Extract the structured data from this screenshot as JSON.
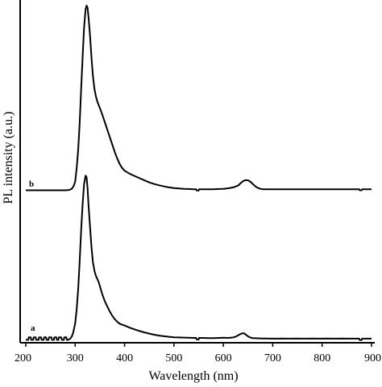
{
  "chart_data": {
    "type": "line",
    "title": "",
    "xlabel": "Wavelength (nm)",
    "ylabel": "PL intensity (a.u.)",
    "xlim": [
      200,
      900
    ],
    "xticks": [
      200,
      300,
      400,
      500,
      600,
      700,
      800,
      900
    ],
    "ylim": [
      0,
      100
    ],
    "grid": false,
    "legend": "none",
    "line_color": "#000000",
    "series": [
      {
        "name": "a",
        "x": [
          200,
          205,
          206,
          210,
          211,
          215,
          216,
          220,
          221,
          226,
          227,
          231,
          232,
          236,
          237,
          241,
          242,
          246,
          247,
          252,
          253,
          257,
          258,
          262,
          263,
          266,
          267,
          272,
          273,
          277,
          278,
          282,
          283,
          286,
          287,
          290,
          293,
          296,
          300,
          303,
          306,
          309,
          312,
          315,
          318,
          321,
          323,
          325,
          327,
          330,
          333,
          336,
          339,
          342,
          345,
          348,
          351,
          355,
          360,
          365,
          370,
          375,
          380,
          385,
          390,
          395,
          400,
          410,
          420,
          430,
          440,
          450,
          460,
          470,
          480,
          490,
          500,
          510,
          520,
          530,
          540,
          545,
          546,
          550,
          551,
          560,
          570,
          580,
          590,
          600,
          610,
          620,
          625,
          630,
          635,
          640,
          643,
          646,
          650,
          655,
          660,
          670,
          680,
          690,
          700,
          710,
          720,
          730,
          740,
          750,
          760,
          770,
          780,
          790,
          800,
          810,
          820,
          830,
          840,
          850,
          860,
          870,
          875,
          876,
          880,
          881,
          890,
          900
        ],
        "y": [
          0.3,
          0.3,
          1.8,
          1.8,
          0.3,
          0.3,
          1.8,
          1.8,
          0.3,
          0.3,
          1.8,
          1.8,
          0.3,
          0.3,
          1.8,
          1.8,
          0.3,
          0.3,
          1.8,
          1.8,
          0.3,
          0.3,
          1.8,
          1.8,
          0.3,
          0.3,
          1.8,
          1.8,
          0.3,
          0.3,
          1.8,
          1.8,
          0.3,
          0.3,
          0.5,
          1.0,
          2.2,
          4.5,
          10,
          18,
          30,
          46,
          64,
          80,
          92,
          97,
          96,
          90,
          80,
          67,
          55,
          46,
          41,
          38,
          36,
          34,
          31,
          27,
          23,
          20,
          17,
          14.5,
          12.5,
          11,
          9.8,
          9.2,
          8.7,
          7.5,
          6.5,
          5.5,
          4.7,
          4.0,
          3.3,
          2.8,
          2.4,
          2.1,
          1.8,
          1.7,
          1.6,
          1.5,
          1.4,
          1.4,
          0.5,
          0.5,
          1.4,
          1.4,
          1.3,
          1.3,
          1.4,
          1.5,
          1.4,
          1.7,
          2.2,
          3.0,
          3.8,
          4.2,
          4.0,
          3.2,
          2.3,
          1.6,
          1.3,
          1.2,
          1.1,
          1.1,
          1.0,
          1.0,
          1.1,
          1.0,
          1.0,
          1.1,
          1.0,
          1.0,
          1.1,
          1.0,
          1.0,
          1.1,
          1.0,
          1.0,
          1.1,
          1.0,
          1.0,
          1.0,
          1.0,
          0.2,
          0.2,
          1.0,
          1.0,
          1.0
        ]
      },
      {
        "name": "b",
        "x": [
          200,
          230,
          260,
          280,
          288,
          293,
          297,
          300,
          303,
          306,
          309,
          312,
          315,
          318,
          321,
          323,
          325,
          327,
          330,
          333,
          336,
          339,
          342,
          345,
          348,
          351,
          355,
          360,
          365,
          370,
          375,
          380,
          385,
          390,
          395,
          400,
          410,
          420,
          430,
          440,
          450,
          460,
          470,
          480,
          490,
          500,
          510,
          520,
          530,
          540,
          545,
          546,
          550,
          551,
          560,
          570,
          580,
          590,
          600,
          610,
          620,
          630,
          635,
          640,
          645,
          650,
          655,
          660,
          665,
          670,
          675,
          680,
          690,
          700,
          710,
          720,
          730,
          740,
          750,
          760,
          770,
          780,
          790,
          800,
          810,
          820,
          830,
          840,
          850,
          860,
          870,
          875,
          876,
          880,
          881,
          890,
          900
        ],
        "y": [
          0.2,
          0.2,
          0.2,
          0.2,
          0.4,
          1.0,
          2.5,
          5,
          12,
          22,
          36,
          54,
          72,
          88,
          98,
          100,
          99,
          94,
          84,
          72,
          62,
          55,
          51,
          48,
          46,
          44,
          41,
          37,
          33,
          29,
          25,
          21,
          17.5,
          14.5,
          12.3,
          10.8,
          9.2,
          8.0,
          6.8,
          5.6,
          4.5,
          3.6,
          2.9,
          2.3,
          1.8,
          1.4,
          1.2,
          1.0,
          0.9,
          0.8,
          0.8,
          0.1,
          0.1,
          0.8,
          0.8,
          0.8,
          0.8,
          0.9,
          1.0,
          1.3,
          1.8,
          2.8,
          4.1,
          5.2,
          5.7,
          5.6,
          4.8,
          3.5,
          2.3,
          1.5,
          1.0,
          0.8,
          0.8,
          0.8,
          0.8,
          0.8,
          0.8,
          0.8,
          0.8,
          0.8,
          0.8,
          0.8,
          0.8,
          0.8,
          0.8,
          0.8,
          0.8,
          0.8,
          0.8,
          0.8,
          0.8,
          0.8,
          0.2,
          0.2,
          0.8,
          0.8,
          0.8
        ]
      }
    ]
  }
}
